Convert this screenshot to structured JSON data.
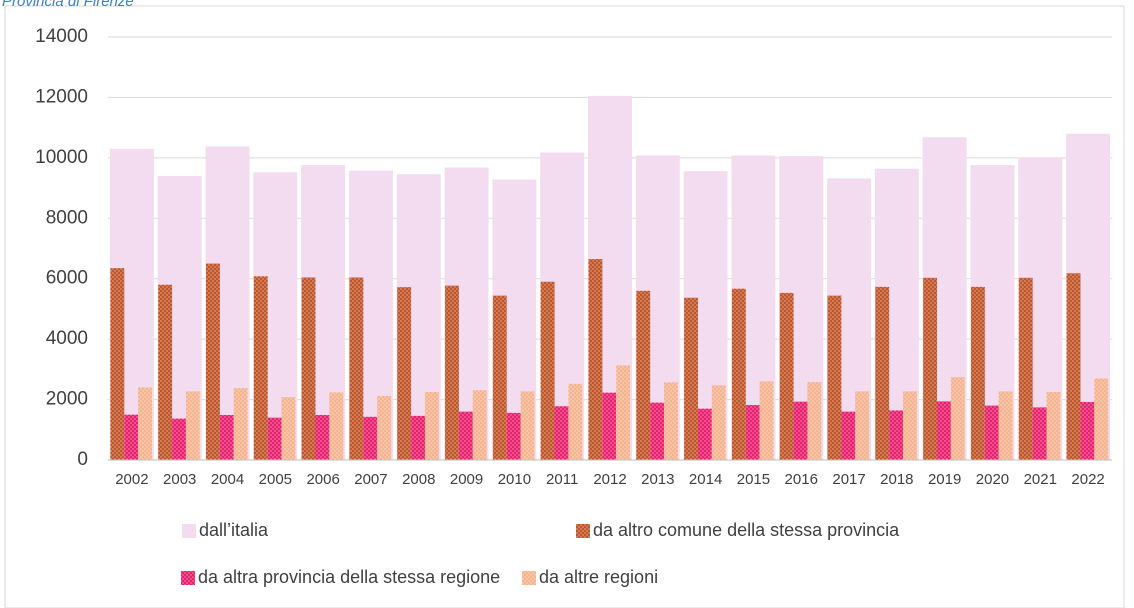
{
  "chart_data": {
    "type": "bar",
    "title": "Provincia di Firenze",
    "categories": [
      "2002",
      "2003",
      "2004",
      "2005",
      "2006",
      "2007",
      "2008",
      "2009",
      "2010",
      "2011",
      "2012",
      "2013",
      "2014",
      "2015",
      "2016",
      "2017",
      "2018",
      "2019",
      "2020",
      "2021",
      "2022"
    ],
    "series": [
      {
        "name": "dall’italia",
        "color": "#f3dcf0",
        "values": [
          10300,
          9400,
          10380,
          9520,
          9760,
          9580,
          9460,
          9680,
          9280,
          10180,
          12050,
          10080,
          9560,
          10080,
          10060,
          9320,
          9640,
          10680,
          9760,
          10020,
          10800
        ]
      },
      {
        "name": "da altro comune della stessa provincia",
        "color": "#c0562a",
        "values": [
          6350,
          5800,
          6500,
          6080,
          6040,
          6040,
          5720,
          5770,
          5440,
          5900,
          6650,
          5600,
          5370,
          5670,
          5530,
          5440,
          5730,
          6030,
          5730,
          6030,
          6180
        ]
      },
      {
        "name": "da altra provincia della stessa regione",
        "color": "#e8206e",
        "values": [
          1500,
          1370,
          1490,
          1400,
          1490,
          1430,
          1460,
          1600,
          1560,
          1780,
          2230,
          1900,
          1700,
          1820,
          1930,
          1600,
          1640,
          1940,
          1800,
          1740,
          1920
        ]
      },
      {
        "name": "da altre regioni",
        "color": "#f5b48f",
        "values": [
          2400,
          2270,
          2380,
          2080,
          2240,
          2120,
          2250,
          2310,
          2270,
          2520,
          3130,
          2570,
          2470,
          2600,
          2580,
          2270,
          2270,
          2740,
          2270,
          2250,
          2700
        ]
      }
    ],
    "ylim": [
      0,
      14000
    ],
    "yticks": [
      0,
      2000,
      4000,
      6000,
      8000,
      10000,
      12000,
      14000
    ],
    "grid": true
  }
}
